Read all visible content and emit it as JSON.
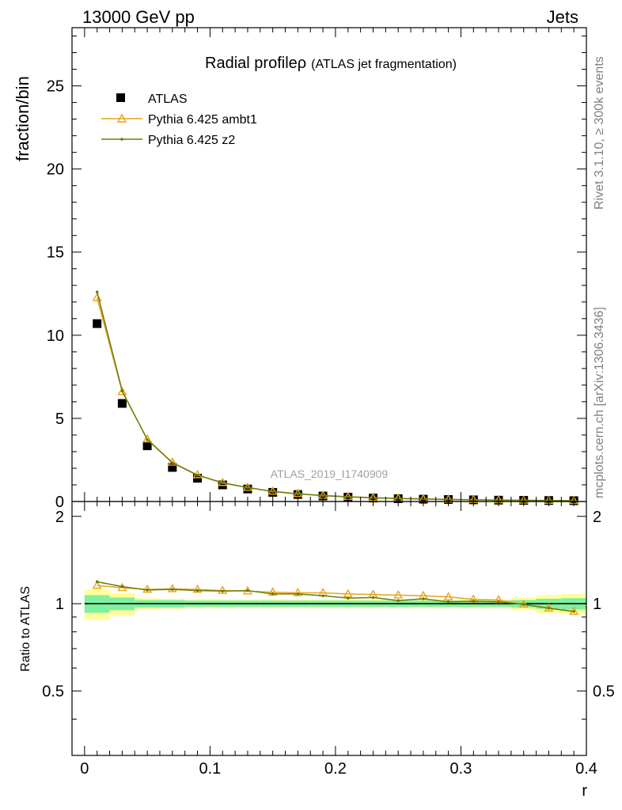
{
  "header": {
    "left": "13000 GeV pp",
    "right": "Jets"
  },
  "side_labels": {
    "rivet": "Rivet 3.1.10, ≥ 300k events",
    "mcplots": "mcplots.cern.ch [arXiv:1306.3436]"
  },
  "colors": {
    "atlas": "#000000",
    "ambt1": "#e8a317",
    "z2": "#6b7d0a",
    "band_inner": "#7ef0a0",
    "band_outer": "#ffff99",
    "watermark": "#a0a0a0"
  },
  "chart_data": [
    {
      "type": "scatter",
      "panel": "main",
      "title_main": "Radial profile",
      "title_symbol": "ρ",
      "title_note": "(ATLAS jet fragmentation)",
      "ylabel": "fraction/bin",
      "xlabel": "",
      "analysis_label": "ATLAS_2019_I1740909",
      "xlim": [
        -0.01,
        0.4
      ],
      "ylim": [
        0,
        28.5
      ],
      "yticks": [
        0,
        5,
        10,
        15,
        20,
        25
      ],
      "ytick_labels": [
        "0",
        "5",
        "10",
        "15",
        "20",
        "25"
      ],
      "grid": false,
      "legend_position": "top-left",
      "x": [
        0.01,
        0.03,
        0.05,
        0.07,
        0.09,
        0.11,
        0.13,
        0.15,
        0.17,
        0.19,
        0.21,
        0.23,
        0.25,
        0.27,
        0.29,
        0.31,
        0.33,
        0.35,
        0.37,
        0.39
      ],
      "series": [
        {
          "name": "ATLAS",
          "marker": "square",
          "values": [
            10.7,
            5.9,
            3.35,
            2.05,
            1.4,
            1.0,
            0.75,
            0.55,
            0.42,
            0.33,
            0.26,
            0.21,
            0.17,
            0.14,
            0.12,
            0.1,
            0.08,
            0.07,
            0.06,
            0.05
          ]
        },
        {
          "name": "Pythia 6.425 ambt1",
          "marker": "triangle",
          "values": [
            12.25,
            6.6,
            3.75,
            2.35,
            1.6,
            1.13,
            0.84,
            0.61,
            0.47,
            0.36,
            0.29,
            0.23,
            0.19,
            0.16,
            0.13,
            0.11,
            0.09,
            0.07,
            0.06,
            0.05
          ]
        },
        {
          "name": "Pythia 6.425 z2",
          "marker": "dot",
          "values": [
            12.6,
            6.65,
            3.72,
            2.33,
            1.58,
            1.12,
            0.84,
            0.6,
            0.46,
            0.35,
            0.28,
            0.22,
            0.18,
            0.15,
            0.12,
            0.1,
            0.08,
            0.07,
            0.06,
            0.05
          ]
        }
      ]
    },
    {
      "type": "line",
      "panel": "ratio",
      "ylabel": "Ratio to ATLAS",
      "xlabel": "r",
      "xlim": [
        -0.01,
        0.4
      ],
      "ylim": [
        0.3,
        2.25
      ],
      "yticks": [
        0.5,
        1,
        2
      ],
      "ytick_labels": [
        "0.5",
        "1",
        "2"
      ],
      "xticks": [
        0,
        0.1,
        0.2,
        0.3,
        0.4
      ],
      "xtick_labels": [
        "0",
        "0.1",
        "0.2",
        "0.3",
        "0.4"
      ],
      "grid": false,
      "x": [
        0.01,
        0.03,
        0.05,
        0.07,
        0.09,
        0.11,
        0.13,
        0.15,
        0.17,
        0.19,
        0.21,
        0.23,
        0.25,
        0.27,
        0.29,
        0.31,
        0.33,
        0.35,
        0.37,
        0.39
      ],
      "band_edges": [
        0.0,
        0.02,
        0.04,
        0.06,
        0.08,
        0.1,
        0.12,
        0.14,
        0.16,
        0.18,
        0.2,
        0.22,
        0.24,
        0.26,
        0.28,
        0.3,
        0.32,
        0.34,
        0.36,
        0.38,
        0.4
      ],
      "band_inner": [
        0.07,
        0.05,
        0.03,
        0.03,
        0.025,
        0.025,
        0.025,
        0.025,
        0.025,
        0.025,
        0.025,
        0.025,
        0.025,
        0.025,
        0.025,
        0.025,
        0.025,
        0.03,
        0.04,
        0.045
      ],
      "band_outer": [
        0.12,
        0.09,
        0.045,
        0.04,
        0.035,
        0.035,
        0.035,
        0.035,
        0.035,
        0.035,
        0.035,
        0.035,
        0.035,
        0.035,
        0.035,
        0.035,
        0.035,
        0.05,
        0.07,
        0.08
      ],
      "series": [
        {
          "name": "Pythia 6.425 ambt1",
          "marker": "triangle",
          "values": [
            1.155,
            1.135,
            1.12,
            1.125,
            1.12,
            1.11,
            1.105,
            1.095,
            1.09,
            1.09,
            1.08,
            1.075,
            1.07,
            1.065,
            1.055,
            1.035,
            1.03,
            0.995,
            0.965,
            0.94
          ]
        },
        {
          "name": "Pythia 6.425 z2",
          "marker": "dot",
          "values": [
            1.19,
            1.145,
            1.115,
            1.12,
            1.11,
            1.105,
            1.11,
            1.08,
            1.08,
            1.065,
            1.045,
            1.05,
            1.025,
            1.04,
            1.015,
            1.02,
            1.015,
            0.995,
            0.965,
            0.94
          ]
        }
      ]
    }
  ]
}
